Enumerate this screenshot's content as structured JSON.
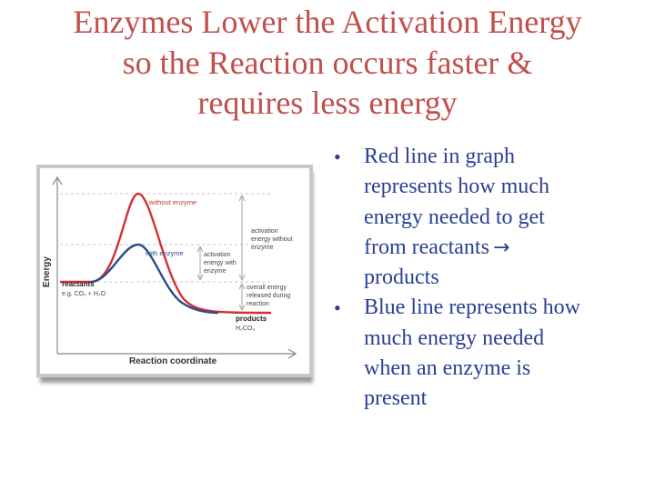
{
  "title": {
    "lines": [
      "Enzymes Lower the Activation Energy",
      "so the Reaction occurs faster &",
      "requires less energy"
    ]
  },
  "diagram": {
    "y_axis_label": "Energy",
    "x_axis_label": "Reaction coordinate",
    "without_enzyme_label": "without enzyme",
    "with_enzyme_label": "with enzyme",
    "activation_without": [
      "activation",
      "energy without",
      "enzyme"
    ],
    "activation_with": [
      "activation",
      "energy with",
      "enzyme"
    ],
    "overall_energy": [
      "overall energy",
      "released during",
      "reaction"
    ],
    "reactants_label": "reactants",
    "reactants_example": "e.g. CO₂ + H₂O",
    "products_label": "products",
    "products_example": "H₂CO₃",
    "colors": {
      "without_enzyme": "#d33131",
      "with_enzyme": "#2b4d8c",
      "frame": "#c8c8c8"
    }
  },
  "bullets": [
    {
      "lines": [
        "Red line in graph",
        "represents how much",
        "energy needed to get",
        "from reactants"
      ],
      "arrow_icon": "right-arrow-icon",
      "tail": "products"
    },
    {
      "lines": [
        "Blue line represents how",
        "much energy needed",
        "when an enzyme is",
        "present"
      ]
    }
  ],
  "bullet_char": "•",
  "colors": {
    "title": "#c0504d",
    "bullet_text": "#2a3f93"
  }
}
